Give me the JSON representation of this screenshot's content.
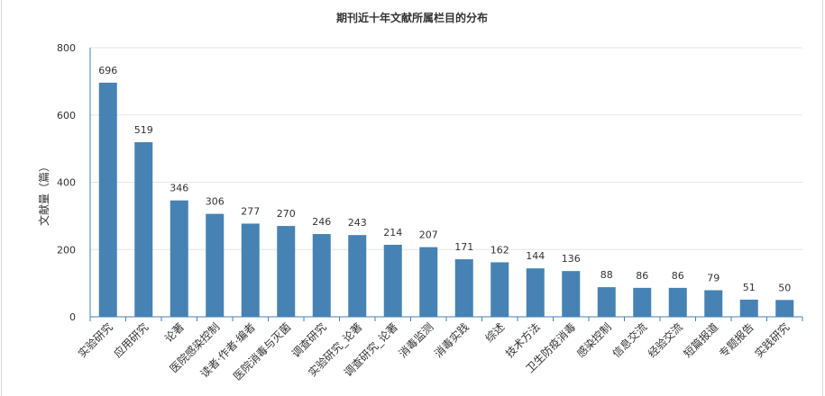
{
  "chart_data": {
    "type": "bar",
    "title": "期刊近十年文献所属栏目的分布",
    "ylabel": "文献量（篇）",
    "xlabel": "",
    "ylim": [
      0,
      800
    ],
    "yticks": [
      0,
      200,
      400,
      600,
      800
    ],
    "grid": true,
    "legend": "none",
    "categories": [
      "实验研究",
      "应用研究",
      "论著",
      "医院感染控制",
      "读者·作者·编者",
      "医院消毒与灭菌",
      "调查研究",
      "实验研究_论著",
      "调查研究_论著",
      "消毒监测",
      "消毒实践",
      "综述",
      "技术方法",
      "卫生防疫消毒",
      "感染控制",
      "信息交流",
      "经验交流",
      "短篇报道",
      "专题报告",
      "实践研究"
    ],
    "values": [
      696,
      519,
      346,
      306,
      277,
      270,
      246,
      243,
      214,
      207,
      171,
      162,
      144,
      136,
      88,
      86,
      86,
      79,
      51,
      50
    ],
    "colors": {
      "bar": "#4682b4",
      "axis": "#4682b4",
      "grid": "#e6e6e6",
      "text": "#333333"
    }
  }
}
